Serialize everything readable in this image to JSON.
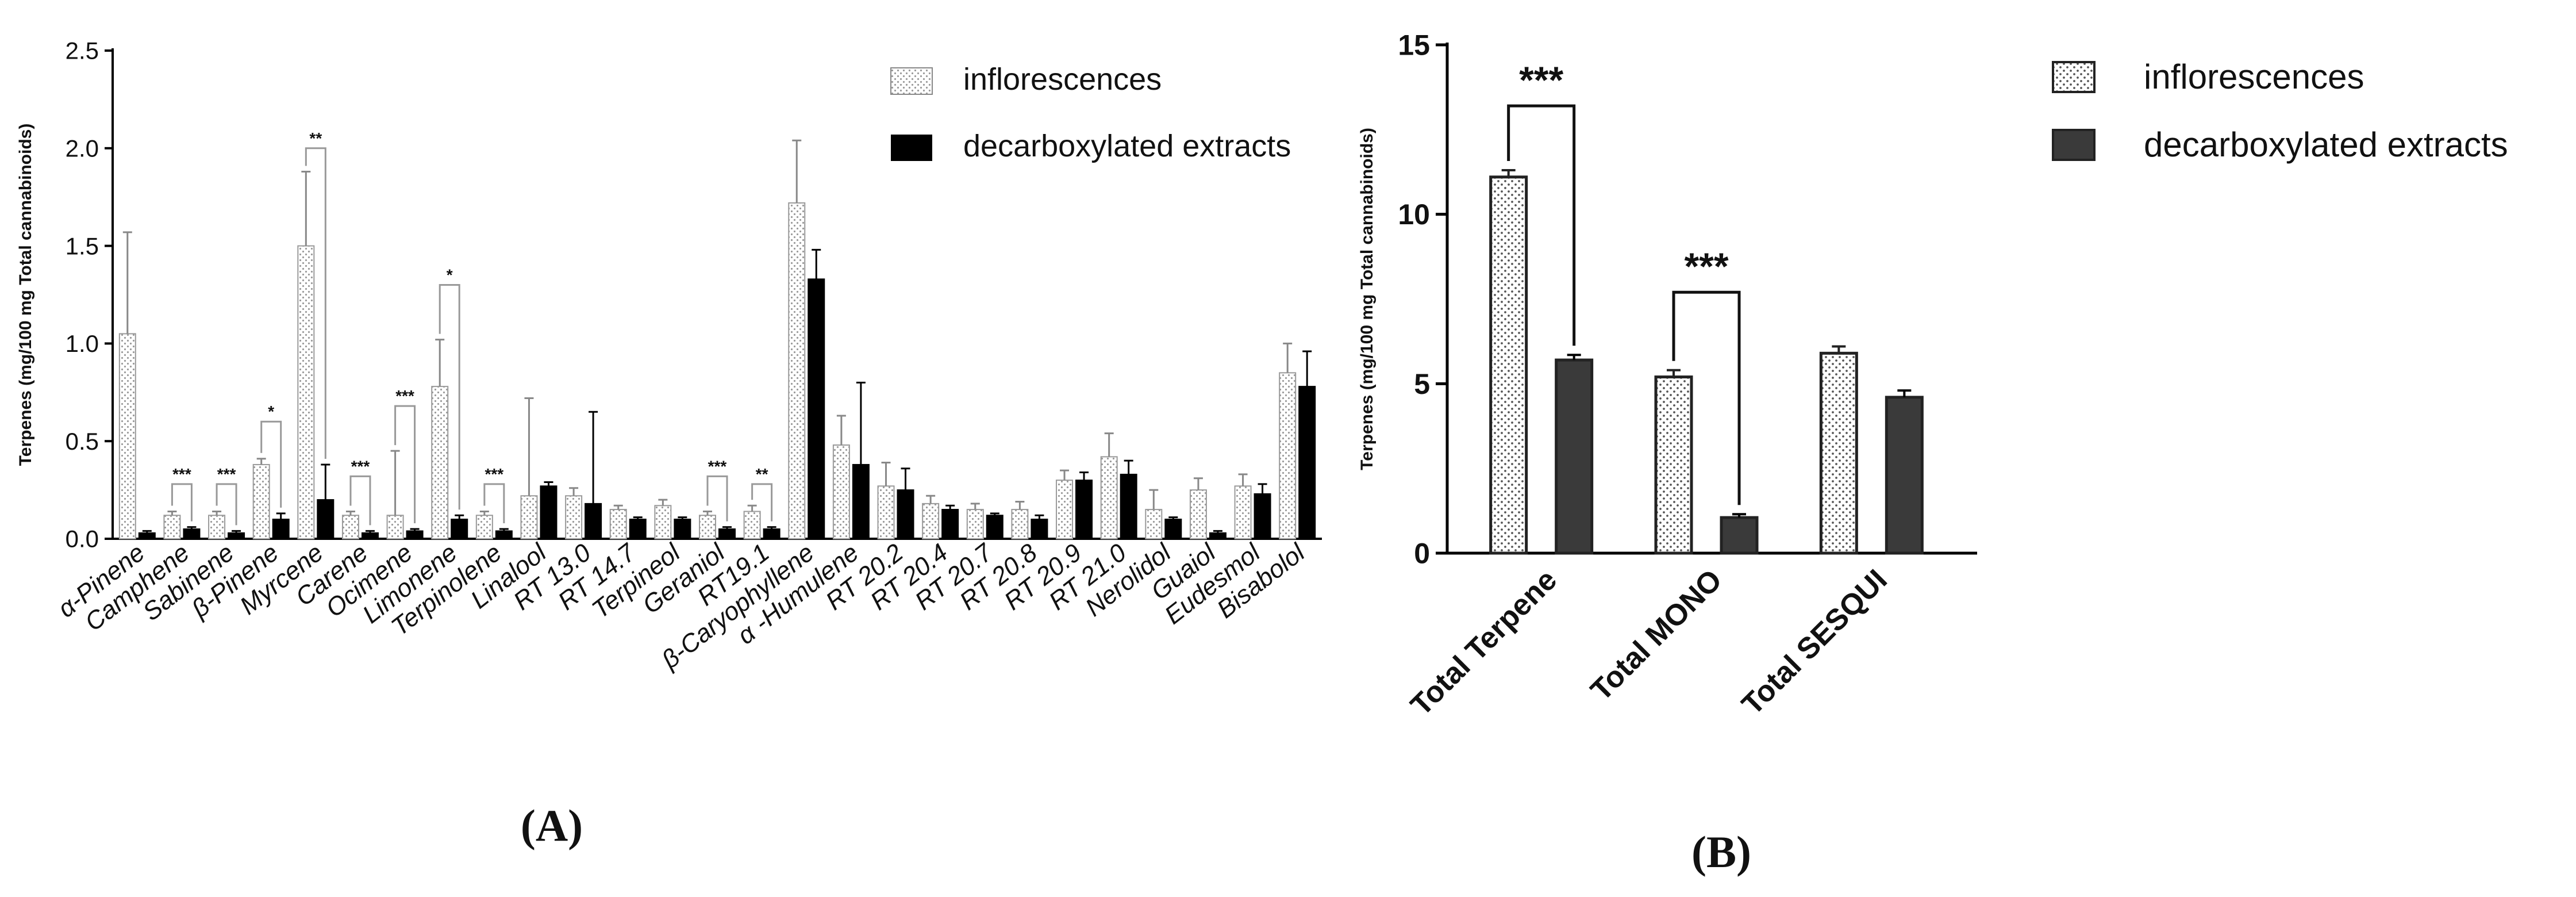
{
  "chart_data": [
    {
      "type": "bar",
      "panel_label": "(A)",
      "ylabel": "Terpenes (mg/100 mg Total cannabinoids)",
      "xlabel": "",
      "ylim": [
        0,
        2.5
      ],
      "yticks": [
        "0.0",
        "0.5",
        "1.0",
        "1.5",
        "2.0",
        "2.5"
      ],
      "grid": false,
      "legend_position": "top-right",
      "categories": [
        "α-Pinene",
        "Camphene",
        "Sabinene",
        "β-Pinene",
        "Myrcene",
        "Carene",
        "Ocimene",
        "Limonene",
        "Terpinolene",
        "Linalool",
        "RT 13.0",
        "RT 14.7",
        "Terpineol",
        "Geraniol",
        "RT19.1",
        "β-Caryophyllene",
        "α -Humulene",
        "RT 20.2",
        "RT 20.4",
        "RT 20.7",
        "RT 20.8",
        "RT 20.9",
        "RT 21.0",
        "Nerolidol",
        "Guaiol",
        "Eudesmol",
        "Bisabolol"
      ],
      "series": [
        {
          "name": "inflorescences",
          "pattern": "dots",
          "values": [
            1.05,
            0.12,
            0.12,
            0.38,
            1.5,
            0.12,
            0.12,
            0.78,
            0.12,
            0.22,
            0.22,
            0.15,
            0.17,
            0.12,
            0.14,
            1.72,
            0.48,
            0.27,
            0.18,
            0.15,
            0.15,
            0.3,
            0.42,
            0.15,
            0.25,
            0.27,
            0.85
          ],
          "errors": [
            0.52,
            0.02,
            0.02,
            0.03,
            0.38,
            0.02,
            0.33,
            0.24,
            0.02,
            0.5,
            0.04,
            0.02,
            0.03,
            0.02,
            0.03,
            0.32,
            0.15,
            0.12,
            0.04,
            0.03,
            0.04,
            0.05,
            0.12,
            0.1,
            0.06,
            0.06,
            0.15
          ]
        },
        {
          "name": "decarboxylated extracts",
          "pattern": "solid",
          "values": [
            0.03,
            0.05,
            0.03,
            0.1,
            0.2,
            0.03,
            0.04,
            0.1,
            0.04,
            0.27,
            0.18,
            0.1,
            0.1,
            0.05,
            0.05,
            1.33,
            0.38,
            0.25,
            0.15,
            0.12,
            0.1,
            0.3,
            0.33,
            0.1,
            0.03,
            0.23,
            0.78
          ],
          "errors": [
            0.01,
            0.01,
            0.01,
            0.03,
            0.18,
            0.01,
            0.01,
            0.02,
            0.01,
            0.02,
            0.47,
            0.01,
            0.01,
            0.01,
            0.01,
            0.15,
            0.42,
            0.11,
            0.02,
            0.01,
            0.02,
            0.04,
            0.07,
            0.01,
            0.01,
            0.05,
            0.18
          ]
        }
      ],
      "annotations": [
        {
          "category": "Camphene",
          "text": "***",
          "y": 0.28
        },
        {
          "category": "Sabinene",
          "text": "***",
          "y": 0.28
        },
        {
          "category": "β-Pinene",
          "text": "*",
          "y": 0.6
        },
        {
          "category": "Myrcene",
          "text": "**",
          "y": 2.0
        },
        {
          "category": "Carene",
          "text": "***",
          "y": 0.32
        },
        {
          "category": "Ocimene",
          "text": "***",
          "y": 0.68
        },
        {
          "category": "Limonene",
          "text": "*",
          "y": 1.3
        },
        {
          "category": "Terpinolene",
          "text": "***",
          "y": 0.28
        },
        {
          "category": "Geraniol",
          "text": "***",
          "y": 0.32
        },
        {
          "category": "RT19.1",
          "text": "**",
          "y": 0.28
        }
      ]
    },
    {
      "type": "bar",
      "panel_label": "(B)",
      "ylabel": "Terpenes (mg/100 mg Total cannabinoids)",
      "xlabel": "",
      "ylim": [
        0,
        15
      ],
      "yticks": [
        "0",
        "5",
        "10",
        "15"
      ],
      "grid": false,
      "legend_position": "top-right",
      "categories": [
        "Total Terpene",
        "Total MONO",
        "Total SESQUI"
      ],
      "series": [
        {
          "name": "inflorescences",
          "pattern": "dots",
          "values": [
            11.1,
            5.2,
            5.9
          ],
          "errors": [
            0.2,
            0.2,
            0.2
          ]
        },
        {
          "name": "decarboxylated extracts",
          "pattern": "solid",
          "values": [
            5.7,
            1.05,
            4.6
          ],
          "errors": [
            0.15,
            0.1,
            0.2
          ]
        }
      ],
      "annotations": [
        {
          "category": "Total Terpene",
          "text": "***",
          "y": 13.2
        },
        {
          "category": "Total MONO",
          "text": "***",
          "y": 7.7
        }
      ]
    }
  ]
}
